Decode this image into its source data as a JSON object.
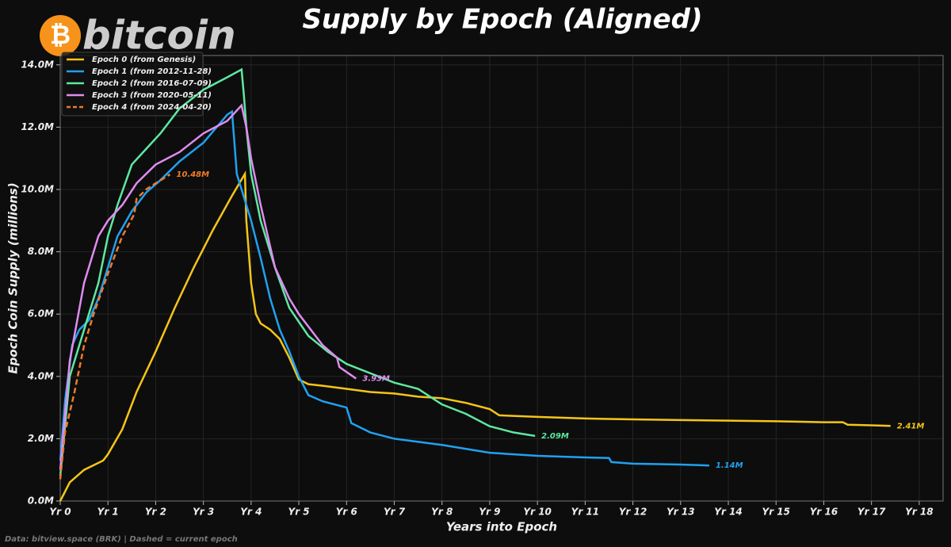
{
  "logo": {
    "symbol": "₿",
    "text": "bitcoin"
  },
  "footer": "Data: bitview.space (BRK)  |  Dashed = current epoch",
  "chart_data": {
    "type": "line",
    "title": "Supply by Epoch (Aligned)",
    "x_label": "Years into Epoch",
    "y_label": "Epoch Coin Supply (millions)",
    "xlim": [
      0,
      18.5
    ],
    "ylim": [
      0,
      14.3
    ],
    "xticks": [
      {
        "value": 0,
        "label": "Yr 0"
      },
      {
        "value": 1,
        "label": "Yr 1"
      },
      {
        "value": 2,
        "label": "Yr 2"
      },
      {
        "value": 3,
        "label": "Yr 3"
      },
      {
        "value": 4,
        "label": "Yr 4"
      },
      {
        "value": 5,
        "label": "Yr 5"
      },
      {
        "value": 6,
        "label": "Yr 6"
      },
      {
        "value": 7,
        "label": "Yr 7"
      },
      {
        "value": 8,
        "label": "Yr 8"
      },
      {
        "value": 9,
        "label": "Yr 9"
      },
      {
        "value": 10,
        "label": "Yr 10"
      },
      {
        "value": 11,
        "label": "Yr 11"
      },
      {
        "value": 12,
        "label": "Yr 12"
      },
      {
        "value": 13,
        "label": "Yr 13"
      },
      {
        "value": 14,
        "label": "Yr 14"
      },
      {
        "value": 15,
        "label": "Yr 15"
      },
      {
        "value": 16,
        "label": "Yr 16"
      },
      {
        "value": 17,
        "label": "Yr 17"
      },
      {
        "value": 18,
        "label": "Yr 18"
      }
    ],
    "yticks": [
      {
        "value": 0,
        "label": "0.0M"
      },
      {
        "value": 2,
        "label": "2.0M"
      },
      {
        "value": 4,
        "label": "4.0M"
      },
      {
        "value": 6,
        "label": "6.0M"
      },
      {
        "value": 8,
        "label": "8.0M"
      },
      {
        "value": 10,
        "label": "10.0M"
      },
      {
        "value": 12,
        "label": "12.0M"
      },
      {
        "value": 14,
        "label": "14.0M"
      }
    ],
    "grid": true,
    "legend": "upper left",
    "series": [
      {
        "name": "Epoch 0  (from Genesis)",
        "color": "#f5c518",
        "dashed": false,
        "end_label": "2.41M",
        "x": [
          0,
          0.2,
          0.5,
          0.9,
          1.0,
          1.3,
          1.6,
          2.0,
          2.4,
          2.8,
          3.2,
          3.6,
          3.87,
          3.9,
          4.0,
          4.1,
          4.2,
          4.4,
          4.6,
          4.8,
          5.0,
          5.2,
          5.5,
          6.0,
          6.5,
          7.0,
          7.5,
          8.0,
          8.5,
          9.0,
          9.2,
          10,
          11,
          12,
          13,
          14,
          15,
          16,
          16.4,
          16.5,
          17,
          17.4
        ],
        "values": [
          0,
          0.6,
          1.0,
          1.3,
          1.5,
          2.3,
          3.5,
          4.8,
          6.2,
          7.5,
          8.7,
          9.8,
          10.5,
          9.0,
          7.0,
          6.0,
          5.7,
          5.5,
          5.2,
          4.6,
          3.9,
          3.75,
          3.7,
          3.6,
          3.5,
          3.45,
          3.35,
          3.3,
          3.15,
          2.95,
          2.75,
          2.7,
          2.65,
          2.62,
          2.6,
          2.58,
          2.56,
          2.53,
          2.53,
          2.45,
          2.43,
          2.41
        ]
      },
      {
        "name": "Epoch 1  (from 2012-11-28)",
        "color": "#1fa2f0",
        "dashed": false,
        "end_label": "1.14M",
        "x": [
          0,
          0.1,
          0.25,
          0.4,
          0.6,
          0.8,
          1.0,
          1.2,
          1.5,
          1.8,
          2.1,
          2.5,
          3.0,
          3.5,
          3.6,
          3.65,
          3.7,
          3.8,
          4.0,
          4.2,
          4.4,
          4.6,
          4.8,
          5.0,
          5.2,
          5.5,
          6.0,
          6.1,
          6.5,
          7.0,
          8.0,
          9.0,
          10,
          11,
          11.5,
          11.55,
          12,
          13,
          13.6
        ],
        "values": [
          1.3,
          3.2,
          5.0,
          5.5,
          5.8,
          6.5,
          7.5,
          8.5,
          9.3,
          9.9,
          10.3,
          10.9,
          11.5,
          12.4,
          12.5,
          11.5,
          10.5,
          10.0,
          9.0,
          7.8,
          6.5,
          5.5,
          4.8,
          4.0,
          3.4,
          3.2,
          3.0,
          2.5,
          2.2,
          2.0,
          1.8,
          1.55,
          1.45,
          1.4,
          1.38,
          1.25,
          1.2,
          1.17,
          1.14
        ]
      },
      {
        "name": "Epoch 2  (from 2016-07-09)",
        "color": "#5ee8a0",
        "dashed": false,
        "end_label": "2.09M",
        "x": [
          0,
          0.2,
          0.5,
          0.8,
          1.0,
          1.2,
          1.5,
          1.8,
          2.1,
          2.5,
          3.0,
          3.5,
          3.8,
          3.85,
          3.9,
          4.0,
          4.2,
          4.5,
          4.8,
          5.2,
          5.6,
          6.0,
          6.5,
          7.0,
          7.5,
          8.0,
          8.5,
          9.0,
          9.5,
          9.95
        ],
        "values": [
          0.8,
          4.0,
          5.5,
          7.0,
          8.5,
          9.5,
          10.8,
          11.3,
          11.8,
          12.6,
          13.2,
          13.6,
          13.85,
          13.0,
          12.0,
          10.5,
          9.0,
          7.5,
          6.2,
          5.3,
          4.8,
          4.4,
          4.1,
          3.8,
          3.6,
          3.1,
          2.8,
          2.4,
          2.2,
          2.09
        ]
      },
      {
        "name": "Epoch 3  (from 2020-05-11)",
        "color": "#e08cf0",
        "dashed": false,
        "end_label": "3.93M",
        "x": [
          0,
          0.2,
          0.5,
          0.8,
          1.0,
          1.3,
          1.6,
          2.0,
          2.5,
          3.0,
          3.5,
          3.8,
          3.9,
          4.0,
          4.2,
          4.5,
          4.8,
          5.0,
          5.5,
          5.8,
          5.85,
          6.2
        ],
        "values": [
          1.0,
          4.5,
          7.0,
          8.5,
          9.0,
          9.5,
          10.2,
          10.8,
          11.2,
          11.8,
          12.2,
          12.7,
          12.0,
          11.0,
          9.5,
          7.5,
          6.5,
          6.0,
          5.0,
          4.6,
          4.3,
          3.93
        ]
      },
      {
        "name": "Epoch 4  (from 2024-04-20)",
        "color": "#f07a2a",
        "dashed": true,
        "end_label": "10.48M",
        "x": [
          0,
          0.1,
          0.3,
          0.5,
          0.7,
          1.0,
          1.3,
          1.55,
          1.6,
          1.8,
          2.0,
          2.3
        ],
        "values": [
          0.7,
          2.2,
          3.5,
          5.0,
          6.0,
          7.3,
          8.5,
          9.2,
          9.7,
          10.0,
          10.2,
          10.48
        ]
      }
    ]
  }
}
